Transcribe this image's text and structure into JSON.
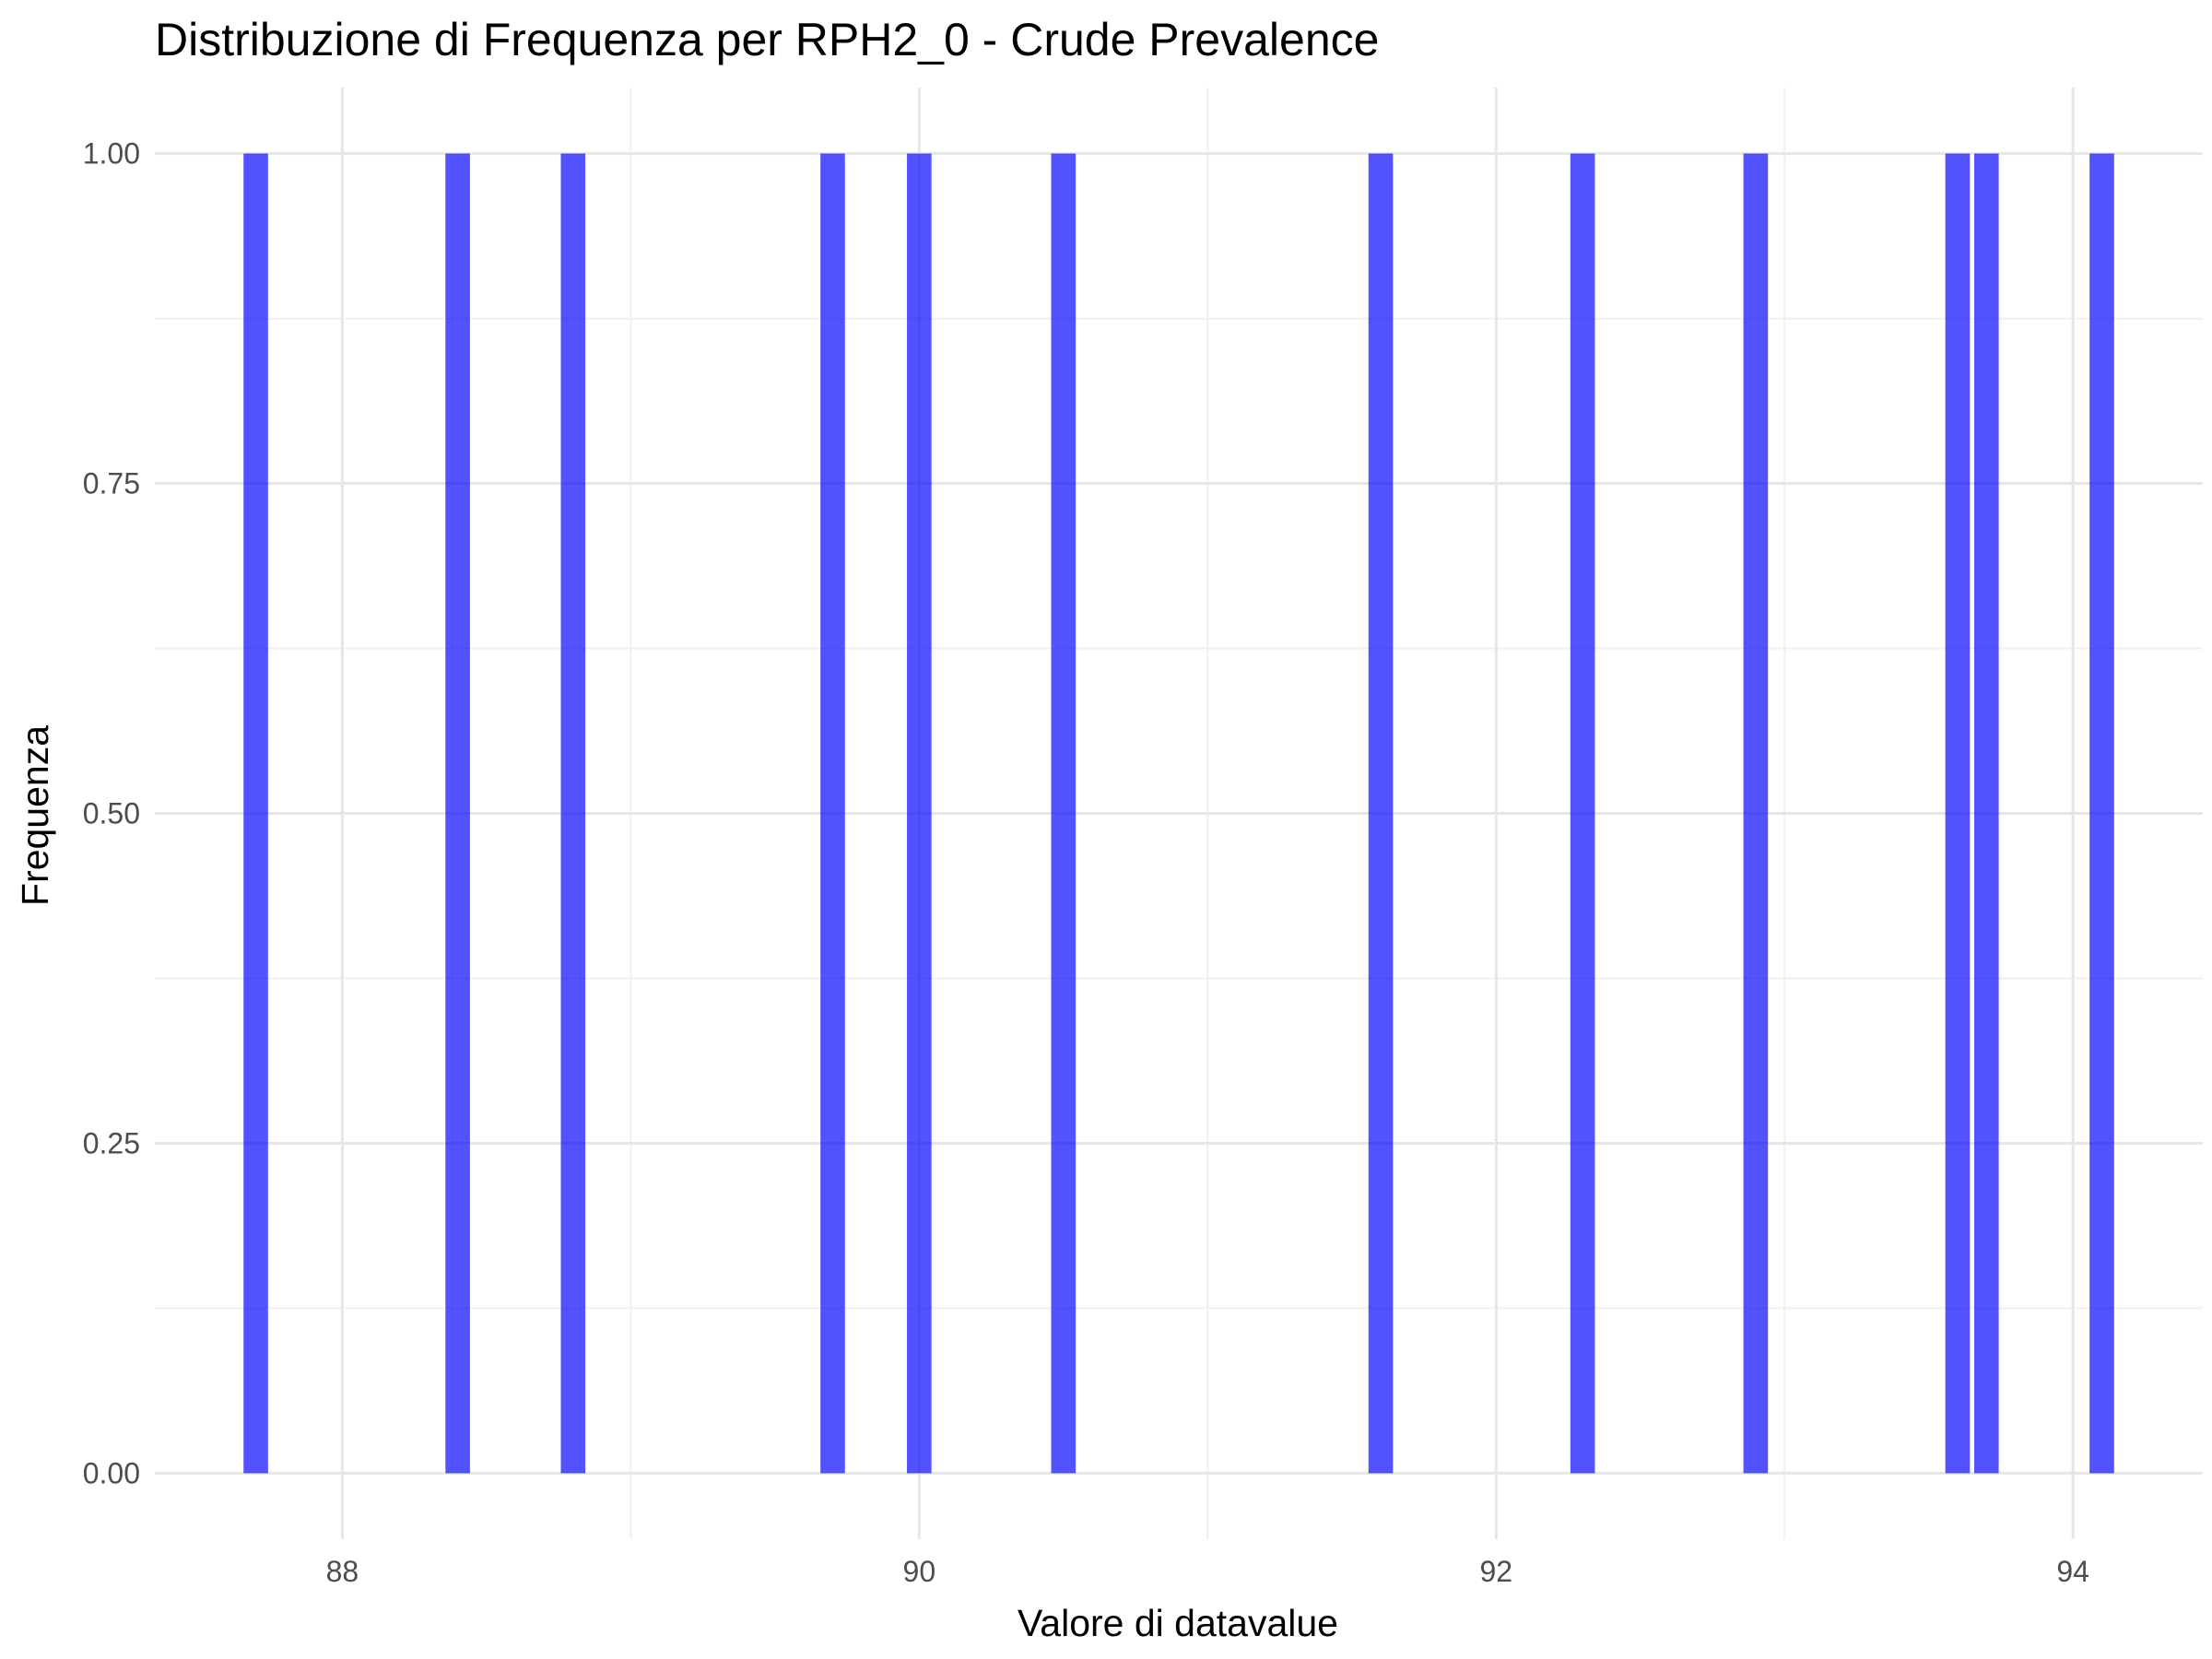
{
  "chart_data": {
    "type": "bar",
    "title": "Distribuzione di Frequenza per RPH2_0 - Crude Prevalence",
    "xlabel": "Valore di datavalue",
    "ylabel": "Frequenza",
    "x": [
      87.7,
      88.4,
      88.8,
      89.7,
      90.0,
      90.5,
      91.6,
      92.3,
      92.9,
      93.6,
      93.7,
      94.1
    ],
    "values": [
      1,
      1,
      1,
      1,
      1,
      1,
      1,
      1,
      1,
      1,
      1,
      1
    ],
    "bin_width": 0.085,
    "xlim": [
      87.35,
      94.45
    ],
    "ylim": [
      -0.05,
      1.05
    ],
    "x_ticks": [
      88,
      90,
      92,
      94
    ],
    "x_tick_labels": [
      "88",
      "90",
      "92",
      "94"
    ],
    "y_ticks": [
      0,
      0.25,
      0.5,
      0.75,
      1.0
    ],
    "y_tick_labels": [
      "0.00",
      "0.25",
      "0.50",
      "0.75",
      "1.00"
    ],
    "grid": true,
    "bar_color": "#0000ff",
    "background": "#ffffff"
  }
}
